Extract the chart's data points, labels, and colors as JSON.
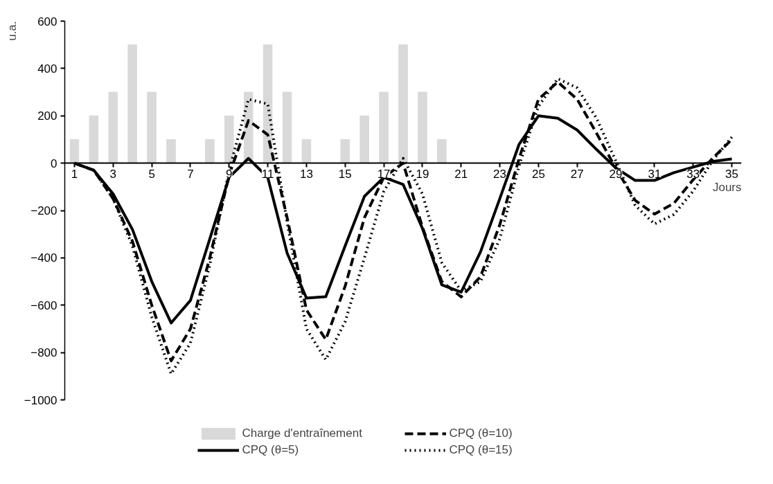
{
  "chart_data": {
    "type": "bar",
    "xlabel": "Jours",
    "ylabel": "u.a.",
    "x": [
      1,
      2,
      3,
      4,
      5,
      6,
      7,
      8,
      9,
      10,
      11,
      12,
      13,
      14,
      15,
      16,
      17,
      18,
      19,
      20,
      21,
      22,
      23,
      24,
      25,
      26,
      27,
      28,
      29,
      30,
      31,
      32,
      33,
      34,
      35
    ],
    "series": [
      {
        "name": "Charge d'entraînement",
        "color": "#d9d9d9",
        "values": [
          100,
          200,
          300,
          500,
          300,
          100,
          0,
          100,
          200,
          300,
          500,
          300,
          100,
          0,
          100,
          200,
          300,
          500,
          300,
          100,
          0,
          0,
          0,
          0,
          0,
          0,
          0,
          0,
          0,
          0,
          0,
          0,
          0,
          0,
          0
        ]
      },
      {
        "name": "CPQ (θ=5)",
        "type": "line",
        "color": "#000000",
        "line_style": "solid",
        "values": [
          0,
          -30,
          -130,
          -280,
          -500,
          -675,
          -580,
          -320,
          -60,
          20,
          -60,
          -380,
          -570,
          -564,
          -350,
          -140,
          -60,
          -90,
          -276,
          -514,
          -545,
          -375,
          -150,
          80,
          200,
          190,
          140,
          58,
          -20,
          -73,
          -73,
          -40,
          -17,
          7,
          18
        ]
      },
      {
        "name": "CPQ (θ=10)",
        "type": "line",
        "color": "#000000",
        "line_style": "dashed",
        "values": [
          0,
          -30,
          -150,
          -330,
          -600,
          -835,
          -700,
          -400,
          -50,
          180,
          120,
          -230,
          -620,
          -745,
          -520,
          -230,
          -60,
          0,
          -270,
          -500,
          -565,
          -480,
          -260,
          20,
          270,
          343,
          270,
          127,
          -22,
          -157,
          -215,
          -170,
          -70,
          20,
          100
        ]
      },
      {
        "name": "CPQ (θ=15)",
        "type": "line",
        "color": "#000000",
        "line_style": "dotted",
        "values": [
          0,
          -30,
          -150,
          -350,
          -650,
          -890,
          -760,
          -430,
          -30,
          270,
          250,
          -250,
          -700,
          -830,
          -670,
          -400,
          -120,
          20,
          -130,
          -420,
          -540,
          -500,
          -320,
          -10,
          240,
          357,
          318,
          190,
          10,
          -178,
          -257,
          -217,
          -118,
          10,
          110
        ]
      }
    ],
    "xlim": [
      0.5,
      35.5
    ],
    "xticks": [
      1,
      3,
      5,
      7,
      9,
      11,
      13,
      15,
      17,
      19,
      21,
      23,
      25,
      27,
      29,
      31,
      33,
      35
    ],
    "ylim": [
      -1000,
      600
    ],
    "yticks": [
      -1000,
      -800,
      -600,
      -400,
      -200,
      0,
      200,
      400,
      600
    ],
    "grid": false,
    "legend": "bottom"
  }
}
